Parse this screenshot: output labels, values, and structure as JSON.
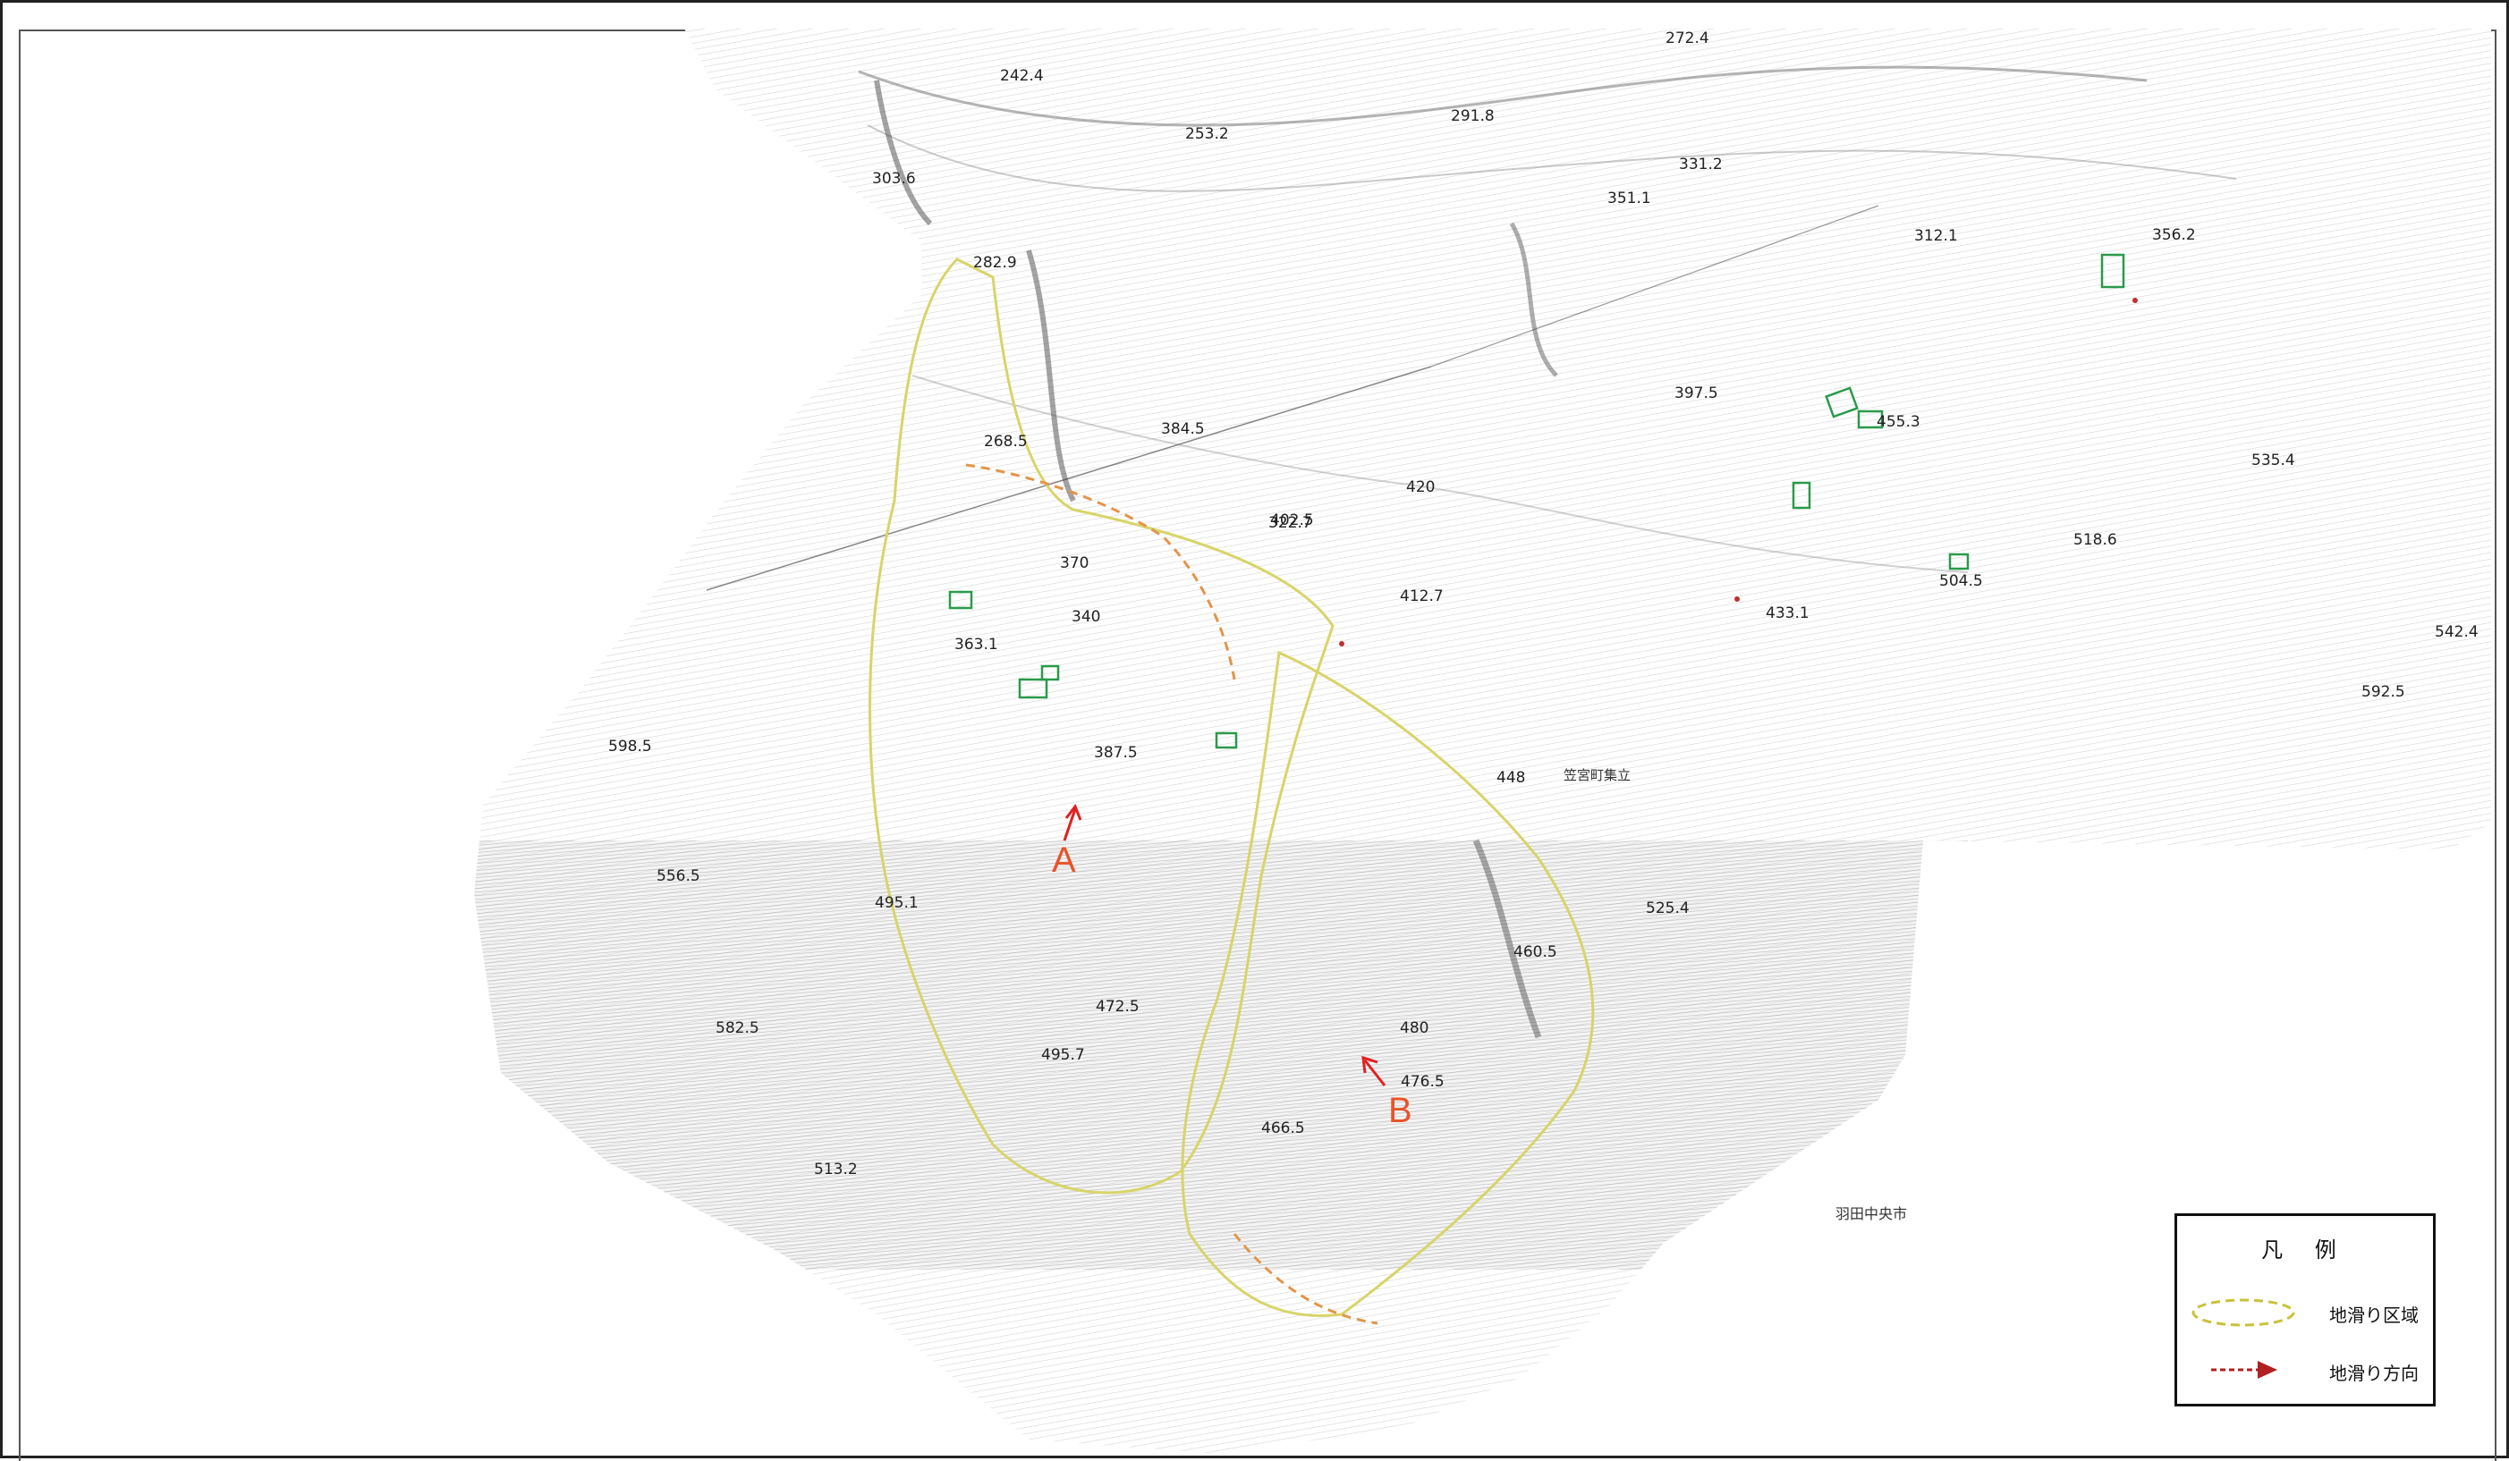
{
  "legend": {
    "title": "凡 例",
    "items": [
      {
        "label": "地滑り区域",
        "symbol": "landslide-area-ellipse",
        "color": "#c8c23a"
      },
      {
        "label": "地滑り方向",
        "symbol": "landslide-direction-arrow",
        "color": "#b02020"
      }
    ]
  },
  "markers": {
    "a": "A",
    "b": "B"
  },
  "place_labels": {
    "city": "羽田中央市",
    "building": "笠宮町集立"
  },
  "colors": {
    "contour": "#8a8a8a",
    "dense_contour": "#5a5a5a",
    "landslide_boundary": "#d8d46a",
    "arrow": "#e02020",
    "marker_text": "#e8542a",
    "structure": "#2a9a4a"
  },
  "elevations": [
    "242.4",
    "253.2",
    "268.5",
    "272.4",
    "282.9",
    "291.8",
    "303.6",
    "312.1",
    "322.7",
    "331.2",
    "340",
    "351.1",
    "356.2",
    "363.1",
    "370",
    "384.5",
    "387.5",
    "397.5",
    "402.5",
    "412.7",
    "420",
    "433.1",
    "448",
    "455.3",
    "460.5",
    "466.5",
    "472.5",
    "476.5",
    "480",
    "495.1",
    "495.7",
    "504.5",
    "513.2",
    "518.6",
    "525.4",
    "535.4",
    "542.4",
    "556.5",
    "582.5",
    "592.5",
    "598.5"
  ]
}
